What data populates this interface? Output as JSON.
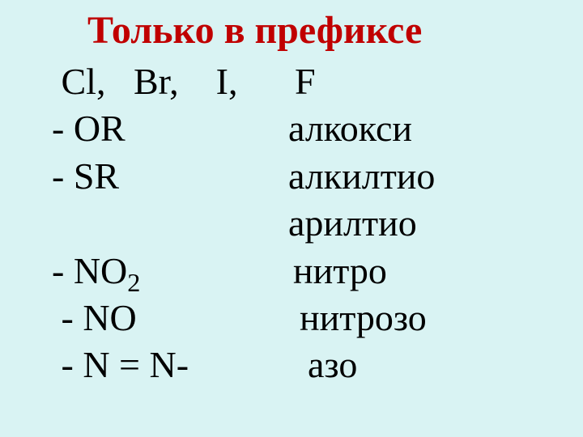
{
  "title": "Только в префиксе",
  "rows": {
    "r1_left": " Cl,   Br,    I,",
    "r1_right": "F",
    "r2_left": "- OR",
    "r2_right": "алкокси",
    "r3_left": "- SR",
    "r3_right": "алкилтио",
    "r4_left": "",
    "r4_right": "арилтио",
    "r5_left_a": "- NO",
    "r5_left_b": "2",
    "r5_right": "нитро",
    "r6_left": " - NO",
    "r6_right": "нитрозо",
    "r7_left": " - N = N-",
    "r7_right": "азо"
  },
  "colors": {
    "background": "#d9f3f3",
    "title": "#c00000",
    "text": "#000000"
  },
  "fontsize": {
    "title": 48,
    "body": 46
  }
}
